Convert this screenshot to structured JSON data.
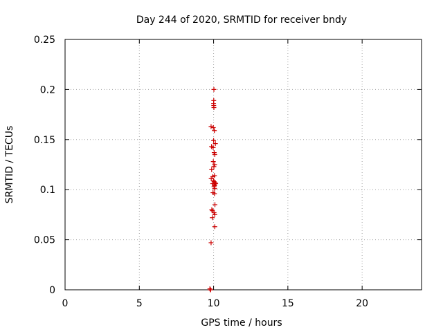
{
  "chart_data": {
    "type": "scatter",
    "title": "Day 244 of 2020, SRMTID for receiver bndy",
    "xlabel": "GPS time / hours",
    "ylabel": "SRMTID / TECUs",
    "xlim": [
      0,
      24
    ],
    "ylim": [
      0,
      0.25
    ],
    "x_ticks": [
      0,
      5,
      10,
      15,
      20
    ],
    "x_tick_labels": [
      "0",
      "5",
      "10",
      "15",
      "20"
    ],
    "y_ticks": [
      0,
      0.05,
      0.1,
      0.15,
      0.2,
      0.25
    ],
    "y_tick_labels": [
      "0",
      "0.05",
      "0.1",
      "0.15",
      "0.2",
      "0.25"
    ],
    "grid": true,
    "marker": "+",
    "series": [
      {
        "name": "SRMTID",
        "color": "#cc0000",
        "points": [
          [
            10.02,
            0.2
          ],
          [
            10.01,
            0.189
          ],
          [
            10.0,
            0.186
          ],
          [
            10.01,
            0.184
          ],
          [
            10.02,
            0.182
          ],
          [
            9.83,
            0.163
          ],
          [
            9.98,
            0.162
          ],
          [
            10.05,
            0.159
          ],
          [
            10.0,
            0.149
          ],
          [
            10.12,
            0.146
          ],
          [
            9.86,
            0.143
          ],
          [
            9.97,
            0.142
          ],
          [
            10.04,
            0.137
          ],
          [
            10.08,
            0.135
          ],
          [
            9.98,
            0.128
          ],
          [
            10.07,
            0.125
          ],
          [
            10.02,
            0.123
          ],
          [
            9.87,
            0.12
          ],
          [
            10.06,
            0.114
          ],
          [
            9.95,
            0.113
          ],
          [
            9.84,
            0.111
          ],
          [
            9.99,
            0.109
          ],
          [
            10.03,
            0.108
          ],
          [
            10.1,
            0.107
          ],
          [
            10.14,
            0.106
          ],
          [
            9.94,
            0.106
          ],
          [
            10.05,
            0.105
          ],
          [
            10.06,
            0.104
          ],
          [
            10.03,
            0.103
          ],
          [
            10.07,
            0.101
          ],
          [
            9.96,
            0.097
          ],
          [
            10.06,
            0.096
          ],
          [
            10.09,
            0.085
          ],
          [
            9.88,
            0.08
          ],
          [
            9.92,
            0.079
          ],
          [
            10.03,
            0.077
          ],
          [
            9.91,
            0.072
          ],
          [
            10.08,
            0.075
          ],
          [
            10.08,
            0.063
          ],
          [
            9.83,
            0.047
          ],
          [
            9.75,
            0.001
          ],
          [
            9.78,
            0.0
          ],
          [
            9.8,
            0.0
          ]
        ]
      }
    ]
  }
}
